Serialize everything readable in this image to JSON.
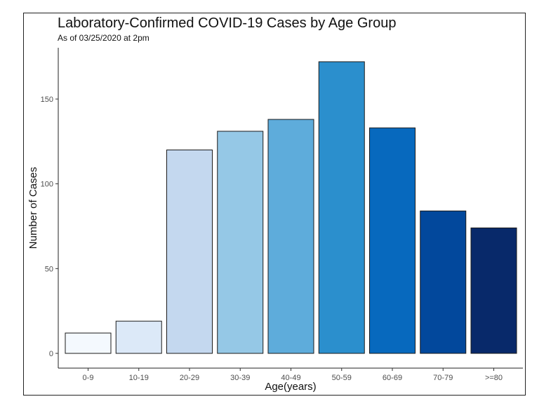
{
  "chart_data": {
    "type": "bar",
    "title": "Laboratory-Confirmed COVID-19 Cases by Age Group",
    "subtitle": "As of 03/25/2020 at 2pm",
    "xlabel": "Age(years)",
    "ylabel": "Number of Cases",
    "categories": [
      "0-9",
      "10-19",
      "20-29",
      "30-39",
      "40-49",
      "50-59",
      "60-69",
      "70-79",
      ">=80"
    ],
    "values": [
      12,
      19,
      120,
      131,
      138,
      172,
      133,
      84,
      74
    ],
    "bar_colors": [
      "#f4f9fe",
      "#dce9f8",
      "#c4d8ef",
      "#95c8e6",
      "#5eacdb",
      "#2b8fcd",
      "#0769be",
      "#02489c",
      "#08296a"
    ],
    "ylim": [
      0,
      175
    ],
    "yticks": [
      0,
      50,
      100,
      150
    ],
    "grid": false,
    "legend": "none"
  }
}
